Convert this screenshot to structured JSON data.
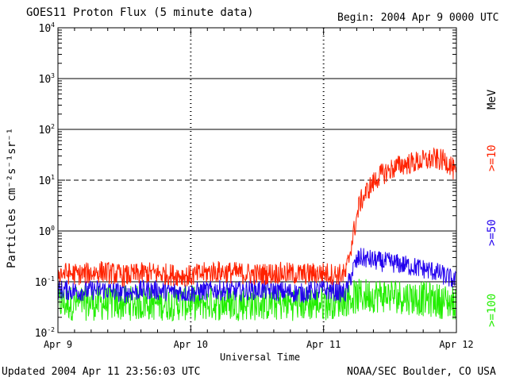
{
  "header": {
    "title": "GOES11 Proton Flux (5 minute data)",
    "begin": "Begin: 2004 Apr 9 0000 UTC"
  },
  "footer": {
    "updated": "Updated 2004 Apr 11 23:56:03 UTC",
    "credit": "NOAA/SEC Boulder, CO USA"
  },
  "chart_data": {
    "type": "line",
    "title": "GOES11 Proton Flux (5 minute data)",
    "xlabel": "Universal Time",
    "ylabel": "Particles cm⁻²s⁻¹sr⁻¹",
    "yscale": "log",
    "ylim": [
      0.01,
      10000
    ],
    "xlim": [
      0,
      72
    ],
    "x_unit": "hours since 2004 Apr 9 0000 UTC",
    "x_ticks": [
      {
        "x": 0,
        "label": "Apr 9"
      },
      {
        "x": 24,
        "label": "Apr 10"
      },
      {
        "x": 48,
        "label": "Apr 11"
      },
      {
        "x": 72,
        "label": "Apr 12"
      }
    ],
    "y_ticks": [
      {
        "exp": -2,
        "value": 0.01
      },
      {
        "exp": -1,
        "value": 0.1
      },
      {
        "exp": 0,
        "value": 1
      },
      {
        "exp": 1,
        "value": 10
      },
      {
        "exp": 2,
        "value": 100
      },
      {
        "exp": 3,
        "value": 1000
      },
      {
        "exp": 4,
        "value": 10000
      }
    ],
    "threshold_line": {
      "value": 10,
      "style": "dashed"
    },
    "legend_unit": "MeV",
    "series": [
      {
        "name": ">=10",
        "color": "#ff2200",
        "x": [
          0,
          4,
          8,
          12,
          16,
          20,
          24,
          28,
          32,
          36,
          40,
          44,
          48,
          50,
          52,
          53.5,
          54.5,
          56,
          58,
          60,
          62,
          64,
          66,
          68,
          70,
          71,
          72
        ],
        "y": [
          0.15,
          0.14,
          0.16,
          0.13,
          0.15,
          0.14,
          0.13,
          0.16,
          0.15,
          0.14,
          0.15,
          0.14,
          0.15,
          0.14,
          0.14,
          1.0,
          3.5,
          6.5,
          12,
          16,
          20,
          22,
          24,
          26,
          24,
          20,
          12
        ]
      },
      {
        "name": ">=50",
        "color": "#2200ee",
        "x": [
          0,
          4,
          8,
          12,
          16,
          20,
          24,
          28,
          32,
          36,
          40,
          44,
          48,
          50,
          52,
          53.5,
          54.5,
          56,
          58,
          60,
          62,
          64,
          66,
          68,
          70,
          72
        ],
        "y": [
          0.07,
          0.065,
          0.07,
          0.06,
          0.07,
          0.065,
          0.06,
          0.07,
          0.065,
          0.07,
          0.065,
          0.06,
          0.07,
          0.065,
          0.06,
          0.2,
          0.3,
          0.28,
          0.25,
          0.24,
          0.22,
          0.2,
          0.18,
          0.16,
          0.13,
          0.1
        ]
      },
      {
        "name": ">=100",
        "color": "#22ee00",
        "x": [
          0,
          8,
          16,
          24,
          32,
          40,
          48,
          53,
          56,
          60,
          64,
          68,
          72
        ],
        "y": [
          0.035,
          0.035,
          0.035,
          0.035,
          0.035,
          0.035,
          0.035,
          0.045,
          0.05,
          0.05,
          0.045,
          0.04,
          0.035
        ]
      }
    ]
  }
}
